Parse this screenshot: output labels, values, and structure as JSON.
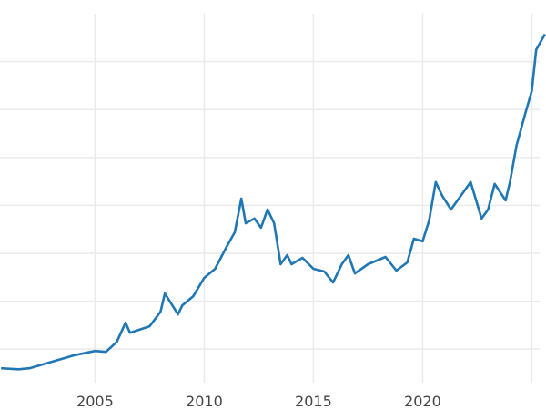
{
  "chart_data": {
    "type": "line",
    "title": "",
    "xlabel": "",
    "ylabel": "",
    "xlim": [
      2000.65,
      2025.65
    ],
    "ylim": [
      150,
      4000
    ],
    "grid": true,
    "x_ticks": [
      2005,
      2010,
      2015,
      2020,
      2025
    ],
    "x_tick_labels": [
      "2005",
      "2010",
      "2015",
      "2020",
      ""
    ],
    "y_gridlines": [
      500,
      1000,
      1500,
      2000,
      2500,
      3000,
      3500
    ],
    "color": "#1f77b4",
    "series": [
      {
        "x": [
          2000.7,
          2001.5,
          2002,
          2003,
          2004,
          2005,
          2005.5,
          2006,
          2006.4,
          2006.6,
          2007,
          2007.5,
          2008,
          2008.2,
          2008.8,
          2009,
          2009.5,
          2010,
          2010.5,
          2011,
          2011.4,
          2011.7,
          2011.9,
          2012.3,
          2012.6,
          2012.9,
          2013.2,
          2013.5,
          2013.8,
          2014,
          2014.5,
          2015,
          2015.5,
          2015.9,
          2016.3,
          2016.6,
          2016.9,
          2017.5,
          2018.3,
          2018.8,
          2019.3,
          2019.6,
          2020,
          2020.3,
          2020.6,
          2020.9,
          2021.3,
          2021.6,
          2022.2,
          2022.7,
          2023,
          2023.3,
          2023.8,
          2024,
          2024.3,
          2024.7,
          2025,
          2025.2,
          2025.6
        ],
        "values": [
          300,
          290,
          300,
          367,
          433,
          481,
          471,
          576,
          776,
          671,
          700,
          738,
          890,
          1081,
          862,
          957,
          1052,
          1243,
          1338,
          1557,
          1719,
          2071,
          1814,
          1862,
          1767,
          1957,
          1814,
          1386,
          1481,
          1386,
          1452,
          1338,
          1310,
          1195,
          1386,
          1481,
          1290,
          1386,
          1462,
          1319,
          1405,
          1652,
          1624,
          1843,
          2243,
          2100,
          1957,
          2052,
          2243,
          1862,
          1957,
          2224,
          2052,
          2243,
          2624,
          2957,
          3195,
          3624,
          3786
        ]
      }
    ]
  }
}
